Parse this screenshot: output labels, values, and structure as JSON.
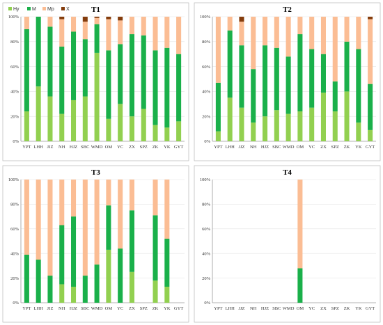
{
  "colors": {
    "Hy": "#92d050",
    "M": "#1ab04a",
    "Mp": "#fbbd94",
    "X": "#843c0c"
  },
  "legend": {
    "items": [
      "Hy",
      "M",
      "Mp",
      "X"
    ]
  },
  "chart_data": [
    {
      "type": "bar",
      "stacked": true,
      "title": "T1",
      "categories": [
        "YPT",
        "LHH",
        "JJZ",
        "NH",
        "HJZ",
        "SBC",
        "WMD",
        "OM",
        "YC",
        "ZX",
        "SPZ",
        "ZK",
        "YK",
        "GYT"
      ],
      "series": [
        {
          "name": "Hy",
          "values": [
            24,
            44,
            36,
            22,
            33,
            36,
            71,
            18,
            30,
            20,
            26,
            13,
            11,
            16
          ]
        },
        {
          "name": "M",
          "values": [
            66,
            56,
            56,
            54,
            55,
            46,
            23,
            55,
            48,
            66,
            59,
            60,
            64,
            54
          ]
        },
        {
          "name": "Mp",
          "values": [
            10,
            0,
            8,
            22,
            12,
            14,
            5,
            25,
            19,
            14,
            15,
            27,
            25,
            30
          ]
        },
        {
          "name": "X",
          "values": [
            0,
            0,
            0,
            2,
            0,
            4,
            1,
            2,
            3,
            0,
            0,
            0,
            0,
            0
          ]
        }
      ],
      "ylim": [
        0,
        100
      ],
      "yticks": [
        "0%",
        "20%",
        "40%",
        "60%",
        "80%",
        "100%"
      ],
      "legend_position": "top-left"
    },
    {
      "type": "bar",
      "stacked": true,
      "title": "T2",
      "categories": [
        "YPT",
        "LHH",
        "JJZ",
        "NH",
        "HJZ",
        "SBC",
        "WMD",
        "OM",
        "YC",
        "ZX",
        "SPZ",
        "ZK",
        "YK",
        "GYT"
      ],
      "series": [
        {
          "name": "Hy",
          "values": [
            8,
            35,
            27,
            15,
            20,
            25,
            22,
            24,
            27,
            39,
            24,
            40,
            15,
            9
          ]
        },
        {
          "name": "M",
          "values": [
            39,
            54,
            50,
            43,
            57,
            50,
            46,
            62,
            47,
            31,
            24,
            40,
            59,
            37
          ]
        },
        {
          "name": "Mp",
          "values": [
            53,
            11,
            19,
            42,
            23,
            25,
            32,
            14,
            26,
            30,
            52,
            20,
            26,
            52
          ]
        },
        {
          "name": "X",
          "values": [
            0,
            0,
            4,
            0,
            0,
            0,
            0,
            0,
            0,
            0,
            0,
            0,
            0,
            2
          ]
        }
      ],
      "ylim": [
        0,
        100
      ],
      "yticks": [
        "0%",
        "20%",
        "40%",
        "60%",
        "80%",
        "100%"
      ]
    },
    {
      "type": "bar",
      "stacked": true,
      "title": "T3",
      "categories": [
        "YPT",
        "LHH",
        "JJZ",
        "NH",
        "HJZ",
        "SBC",
        "WMD",
        "OM",
        "YC",
        "ZX",
        "SPZ",
        "ZK",
        "YK",
        "GYT"
      ],
      "series": [
        {
          "name": "Hy",
          "values": [
            0,
            0,
            0,
            15,
            13,
            0,
            0,
            43,
            0,
            25,
            0,
            18,
            13,
            0
          ]
        },
        {
          "name": "M",
          "values": [
            39,
            35,
            22,
            48,
            57,
            22,
            31,
            36,
            44,
            50,
            0,
            53,
            39,
            0
          ]
        },
        {
          "name": "Mp",
          "values": [
            61,
            65,
            78,
            37,
            30,
            78,
            69,
            21,
            56,
            25,
            0,
            29,
            48,
            0
          ]
        },
        {
          "name": "X",
          "values": [
            0,
            0,
            0,
            0,
            0,
            0,
            0,
            0,
            0,
            0,
            0,
            0,
            0,
            0
          ]
        }
      ],
      "ylim": [
        0,
        100
      ],
      "yticks": [
        "0%",
        "20%",
        "40%",
        "60%",
        "80%",
        "100%"
      ]
    },
    {
      "type": "bar",
      "stacked": true,
      "title": "T4",
      "categories": [
        "YPT",
        "LHH",
        "JJZ",
        "NH",
        "HJZ",
        "SBC",
        "WMD",
        "OM",
        "YC",
        "ZX",
        "SPZ",
        "ZK",
        "YK",
        "GYT"
      ],
      "series": [
        {
          "name": "Hy",
          "values": [
            0,
            0,
            0,
            0,
            0,
            0,
            0,
            0,
            0,
            0,
            0,
            0,
            0,
            0
          ]
        },
        {
          "name": "M",
          "values": [
            0,
            0,
            0,
            0,
            0,
            0,
            0,
            28,
            0,
            0,
            0,
            0,
            0,
            0
          ]
        },
        {
          "name": "Mp",
          "values": [
            0,
            0,
            0,
            0,
            0,
            0,
            0,
            72,
            0,
            0,
            0,
            0,
            0,
            0
          ]
        },
        {
          "name": "X",
          "values": [
            0,
            0,
            0,
            0,
            0,
            0,
            0,
            0,
            0,
            0,
            0,
            0,
            0,
            0
          ]
        }
      ],
      "ylim": [
        0,
        100
      ],
      "yticks": [
        "0%",
        "20%",
        "40%",
        "60%",
        "80%",
        "100%"
      ]
    }
  ]
}
